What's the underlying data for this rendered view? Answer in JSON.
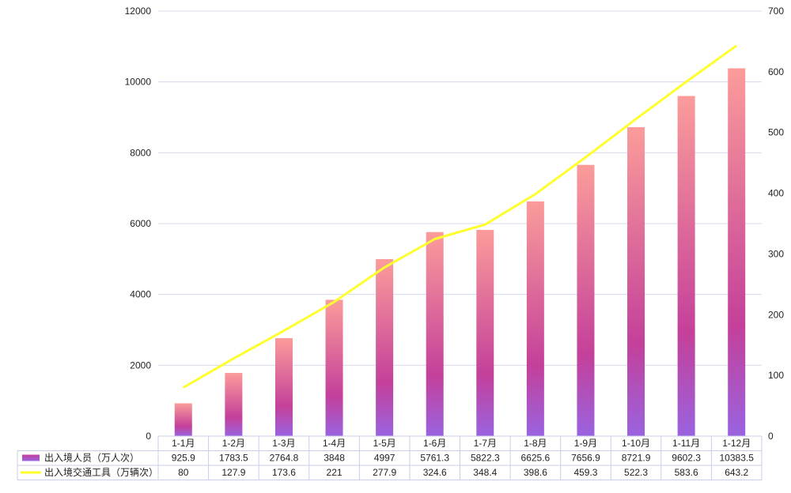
{
  "chart_data": {
    "type": "bar",
    "categories": [
      "1-1月",
      "1-2月",
      "1-3月",
      "1-4月",
      "1-5月",
      "1-6月",
      "1-7月",
      "1-8月",
      "1-9月",
      "1-10月",
      "1-11月",
      "1-12月"
    ],
    "series": [
      {
        "name": "出入境人员（万人次）",
        "type": "bar",
        "axis": "left",
        "values": [
          925.9,
          1783.5,
          2764.8,
          3848,
          4997,
          5761.3,
          5822.3,
          6625.6,
          7656.9,
          8721.9,
          9602.3,
          10383.5
        ],
        "labels": [
          "925.9",
          "1783.5",
          "2764.8",
          "3848",
          "4997",
          "5761.3",
          "5822.3",
          "6625.6",
          "7656.9",
          "8721.9",
          "9602.3",
          "10383.5"
        ],
        "color_top": "#fb9c9a",
        "color_mid": "#c4409a",
        "color_bottom": "#9a63e0"
      },
      {
        "name": "出入境交通工具（万辆次）",
        "type": "line",
        "axis": "right",
        "values": [
          80,
          127.9,
          173.6,
          221,
          277.9,
          324.6,
          348.4,
          398.6,
          459.3,
          522.3,
          583.6,
          643.2
        ],
        "labels": [
          "80",
          "127.9",
          "173.6",
          "221",
          "277.9",
          "324.6",
          "348.4",
          "398.6",
          "459.3",
          "522.3",
          "583.6",
          "643.2"
        ],
        "color": "#ffff2e"
      }
    ],
    "y_left": {
      "ylim": [
        0,
        12000
      ],
      "ticks": [
        "0",
        "2000",
        "4000",
        "6000",
        "8000",
        "10000",
        "12000"
      ]
    },
    "y_right": {
      "ylim": [
        0,
        700
      ],
      "ticks": [
        "0",
        "100",
        "200",
        "300",
        "400",
        "500",
        "600",
        "700"
      ]
    },
    "grid": true,
    "legend": "data-table-bottom"
  }
}
